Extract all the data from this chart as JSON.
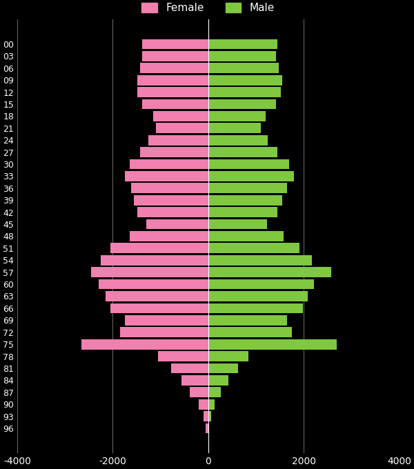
{
  "ages": [
    "00",
    "03",
    "06",
    "09",
    "12",
    "15",
    "18",
    "21",
    "24",
    "27",
    "30",
    "33",
    "36",
    "39",
    "42",
    "45",
    "48",
    "51",
    "54",
    "57",
    "60",
    "63",
    "66",
    "69",
    "72",
    "75",
    "78",
    "81",
    "84",
    "87",
    "90",
    "93",
    "96"
  ],
  "female": [
    1380,
    1380,
    1430,
    1480,
    1480,
    1380,
    1150,
    1100,
    1250,
    1430,
    1650,
    1750,
    1620,
    1550,
    1480,
    1300,
    1650,
    2050,
    2250,
    2450,
    2300,
    2150,
    2050,
    1750,
    1850,
    2650,
    1050,
    780,
    560,
    380,
    200,
    100,
    50
  ],
  "male": [
    1450,
    1420,
    1480,
    1550,
    1520,
    1420,
    1200,
    1100,
    1250,
    1450,
    1700,
    1800,
    1650,
    1550,
    1450,
    1230,
    1580,
    1920,
    2180,
    2580,
    2220,
    2080,
    1980,
    1650,
    1750,
    2700,
    850,
    620,
    420,
    260,
    130,
    60,
    20
  ],
  "female_color": "#f080b0",
  "male_color": "#80c840",
  "background_color": "#000000",
  "text_color": "#ffffff",
  "grid_color": "#ffffff",
  "xlim": [
    -4000,
    4000
  ],
  "xticks": [
    -4000,
    -2000,
    0,
    2000,
    4000
  ],
  "legend_female": "Female",
  "legend_male": "Male",
  "bar_height": 0.85,
  "figsize": [
    6.0,
    6.8
  ],
  "dpi": 100
}
